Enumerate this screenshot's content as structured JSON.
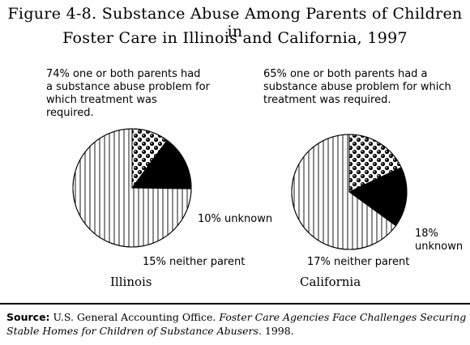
{
  "title": {
    "line1": "Figure 4-8.  Substance Abuse Among Parents of Children in",
    "line2": "Foster Care in Illinois and California, 1997"
  },
  "chart_data": [
    {
      "type": "pie",
      "title": "Illinois",
      "slices": [
        {
          "label": "74% one or both parents had a substance abuse problem for which treatment was required.",
          "value": 74,
          "pattern": "vertical-stripes"
        },
        {
          "label": "10% unknown",
          "value": 10,
          "pattern": "dots"
        },
        {
          "label": "15% neither parent",
          "value": 15,
          "pattern": "solid-black"
        }
      ]
    },
    {
      "type": "pie",
      "title": "California",
      "slices": [
        {
          "label": "65% one or both parents had a substance abuse problem for which treatment was required.",
          "value": 65,
          "pattern": "vertical-stripes"
        },
        {
          "label": "18% unknown",
          "value": 18,
          "pattern": "dots"
        },
        {
          "label": "17% neither parent",
          "value": 17,
          "pattern": "solid-black"
        }
      ]
    }
  ],
  "labels": {
    "il_main": "74% one or both parents had\na substance abuse problem for\nwhich treatment was\nrequired.",
    "il_unknown": "10% unknown",
    "il_neither": "15% neither parent",
    "il_state": "Illinois",
    "ca_main": "65% one or both parents had a\nsubstance abuse problem for which\ntreatment was required.",
    "ca_unknown": "18%\nunknown",
    "ca_neither": "17% neither parent",
    "ca_state": "California"
  },
  "source": {
    "label": "Source:",
    "agency": " U.S. General Accounting Office. ",
    "report": "Foster Care Agencies Face Challenges Securing Stable Homes for Children of Substance Abusers.",
    "year": "  1998."
  },
  "colors": {
    "ink": "#000000",
    "paper": "#ffffff"
  }
}
